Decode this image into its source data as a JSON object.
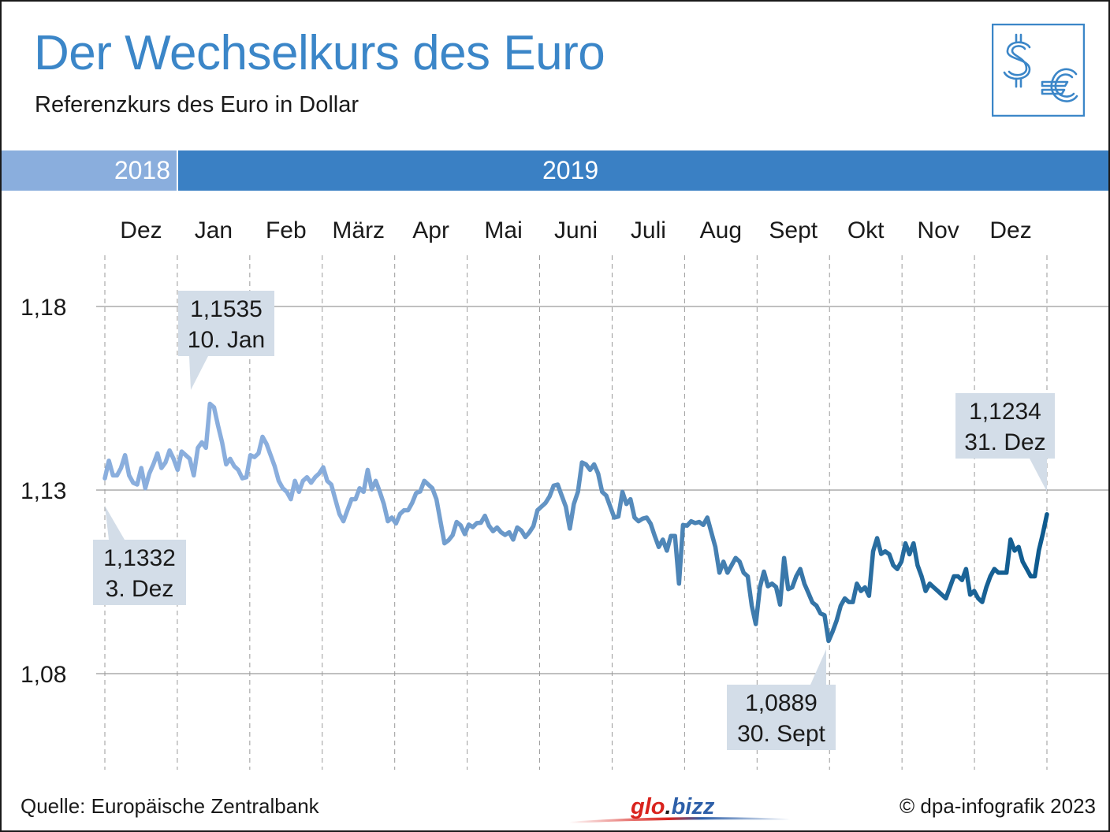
{
  "header": {
    "title": "Der Wechselkurs des Euro",
    "subtitle": "Referenzkurs des Euro in Dollar",
    "icon": "dollar-euro-icon"
  },
  "years": [
    "2018",
    "2019"
  ],
  "footer": {
    "source": "Quelle: Europäische Zentralbank",
    "copyright": "© dpa-infografik 2023",
    "brand_glo": "glo",
    "brand_dot": ".",
    "brand_bizz": "bizz"
  },
  "colors": {
    "title": "#3b86c8",
    "band_2018": "#8aaedd",
    "band_2019": "#3a80c4",
    "line_start": "#8aaedd",
    "line_end": "#0d5a8e",
    "callout_bg": "#d3dde8",
    "grid": "#9a9a9a"
  },
  "chart_data": {
    "type": "line",
    "title": "Der Wechselkurs des Euro",
    "subtitle": "Referenzkurs des Euro in Dollar",
    "xlabel": "",
    "ylabel": "",
    "months": [
      "Dez",
      "Jan",
      "Feb",
      "März",
      "Apr",
      "Mai",
      "Juni",
      "Juli",
      "Aug",
      "Sept",
      "Okt",
      "Nov",
      "Dez"
    ],
    "yticks": [
      "1,08",
      "1,13",
      "1,18"
    ],
    "ytick_values": [
      1.08,
      1.13,
      1.18
    ],
    "ylim": [
      1.054,
      1.2
    ],
    "grid": "horizontal solid, vertical dashed at month starts",
    "series": [
      {
        "start": "2018-12-03",
        "end": "2019-12-31",
        "values": [
          1.1332,
          1.138,
          1.134,
          1.134,
          1.136,
          1.1395,
          1.134,
          1.132,
          1.1315,
          1.136,
          1.1305,
          1.1345,
          1.137,
          1.14,
          1.136,
          1.1375,
          1.1408,
          1.1385,
          1.1355,
          1.1405,
          1.1395,
          1.1385,
          1.134,
          1.1415,
          1.143,
          1.1415,
          1.1535,
          1.1525,
          1.1475,
          1.143,
          1.137,
          1.1385,
          1.1365,
          1.1355,
          1.1332,
          1.1335,
          1.1395,
          1.139,
          1.14,
          1.1445,
          1.1425,
          1.1395,
          1.1365,
          1.1325,
          1.1305,
          1.1295,
          1.1275,
          1.1325,
          1.1295,
          1.1325,
          1.1335,
          1.132,
          1.1335,
          1.1345,
          1.1362,
          1.1325,
          1.1315,
          1.1275,
          1.1235,
          1.1215,
          1.1245,
          1.1275,
          1.1275,
          1.1305,
          1.1295,
          1.1355,
          1.1302,
          1.1325,
          1.1295,
          1.1262,
          1.1215,
          1.1225,
          1.1209,
          1.1235,
          1.1245,
          1.1245,
          1.1265,
          1.1292,
          1.1296,
          1.1325,
          1.1315,
          1.1305,
          1.1275,
          1.1215,
          1.1155,
          1.1163,
          1.1177,
          1.1213,
          1.1204,
          1.118,
          1.1206,
          1.1199,
          1.121,
          1.1211,
          1.123,
          1.1203,
          1.1188,
          1.1198,
          1.1185,
          1.1178,
          1.1185,
          1.1165,
          1.1198,
          1.119,
          1.1172,
          1.1185,
          1.1202,
          1.1245,
          1.1255,
          1.1265,
          1.1283,
          1.1312,
          1.1315,
          1.1285,
          1.1255,
          1.1195,
          1.1262,
          1.1295,
          1.1375,
          1.137,
          1.1355,
          1.137,
          1.1345,
          1.1295,
          1.1285,
          1.1255,
          1.1225,
          1.1228,
          1.1295,
          1.1262,
          1.1275,
          1.1225,
          1.1215,
          1.1222,
          1.1225,
          1.1208,
          1.1175,
          1.1145,
          1.1165,
          1.1135,
          1.1175,
          1.1175,
          1.1045,
          1.1205,
          1.1203,
          1.1215,
          1.121,
          1.1213,
          1.1205,
          1.1225,
          1.1185,
          1.1145,
          1.1075,
          1.1105,
          1.1075,
          1.1095,
          1.1115,
          1.1105,
          1.1075,
          1.1065,
          1.0985,
          1.0935,
          1.1035,
          1.1078,
          1.1038,
          1.1045,
          1.1036,
          1.0988,
          1.1115,
          1.103,
          1.1035,
          1.1065,
          1.1085,
          1.1045,
          1.102,
          1.0994,
          1.0985,
          1.0964,
          1.0959,
          1.0889,
          1.0915,
          1.0945,
          1.0985,
          1.1005,
          1.0995,
          1.0995,
          1.1045,
          1.1025,
          1.1035,
          1.1012,
          1.1133,
          1.1169,
          1.1126,
          1.1133,
          1.1125,
          1.1095,
          1.1085,
          1.1105,
          1.1155,
          1.1125,
          1.1155,
          1.1095,
          1.1065,
          1.1025,
          1.1045,
          1.1035,
          1.1025,
          1.1015,
          1.1005,
          1.1035,
          1.1065,
          1.1065,
          1.1055,
          1.1085,
          1.1015,
          1.1025,
          1.1005,
          1.0995,
          1.1035,
          1.1065,
          1.1085,
          1.1075,
          1.1075,
          1.1075,
          1.1165,
          1.1135,
          1.1145,
          1.1105,
          1.1085,
          1.1065,
          1.1065,
          1.1135,
          1.1182,
          1.1234
        ]
      }
    ],
    "annotations": [
      {
        "value": "1,1332",
        "date": "3. Dez"
      },
      {
        "value": "1,1535",
        "date": "10. Jan"
      },
      {
        "value": "1,0889",
        "date": "30. Sept"
      },
      {
        "value": "1,1234",
        "date": "31. Dez"
      }
    ]
  }
}
